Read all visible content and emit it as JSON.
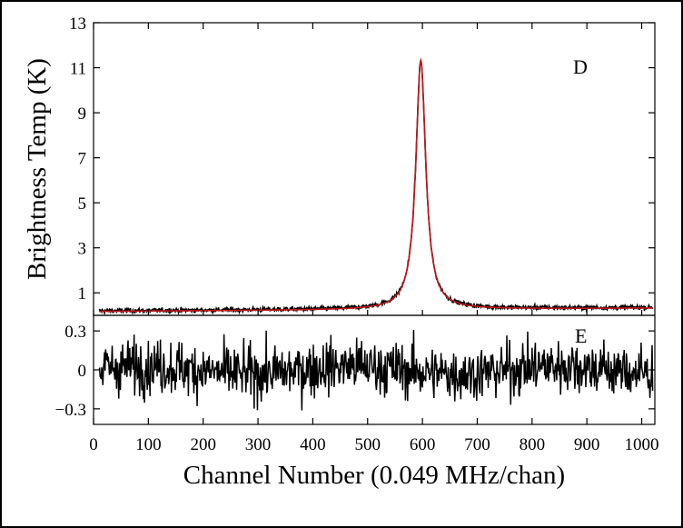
{
  "chart_data": [
    {
      "type": "line",
      "panel": "top",
      "label": "D",
      "ylabel": "Brightness Temp (K)",
      "xlim": [
        0,
        1024
      ],
      "ylim": [
        0,
        13
      ],
      "yticks": [
        1,
        3,
        5,
        7,
        9,
        11,
        13
      ],
      "grid": false,
      "series": [
        {
          "role": "observed",
          "color": "#000000",
          "peak_channel": 597,
          "peak_value": 11.2,
          "baseline": 0.2,
          "noise_rms": 0.05,
          "channels": [
            0,
            100,
            200,
            300,
            400,
            500,
            550,
            570,
            580,
            590,
            597,
            605,
            615,
            625,
            650,
            700,
            800,
            900,
            1020
          ],
          "values": [
            0.2,
            0.2,
            0.2,
            0.25,
            0.3,
            0.45,
            0.9,
            1.6,
            2.5,
            5.6,
            11.2,
            6.0,
            2.9,
            1.7,
            0.8,
            0.35,
            0.25,
            0.2,
            0.18
          ]
        },
        {
          "role": "fit",
          "color": "#c0171b",
          "peak_channel": 597,
          "peak_value": 11.25,
          "baseline": 0.17
        }
      ]
    },
    {
      "type": "line",
      "panel": "bottom",
      "label": "E",
      "xlabel": "Channel Number (0.049 MHz/chan)",
      "xlim": [
        0,
        1024
      ],
      "xticks": [
        0,
        100,
        200,
        300,
        400,
        500,
        600,
        700,
        800,
        900,
        1000
      ],
      "ylim": [
        -0.42,
        0.42
      ],
      "yticks": [
        -0.3,
        0,
        0.3
      ],
      "ytick_labels": [
        "−0.3",
        "0",
        "0.3"
      ],
      "grid": false,
      "series": [
        {
          "role": "residual",
          "color": "#000000",
          "mean": 0,
          "amplitude": 0.27
        }
      ]
    }
  ]
}
